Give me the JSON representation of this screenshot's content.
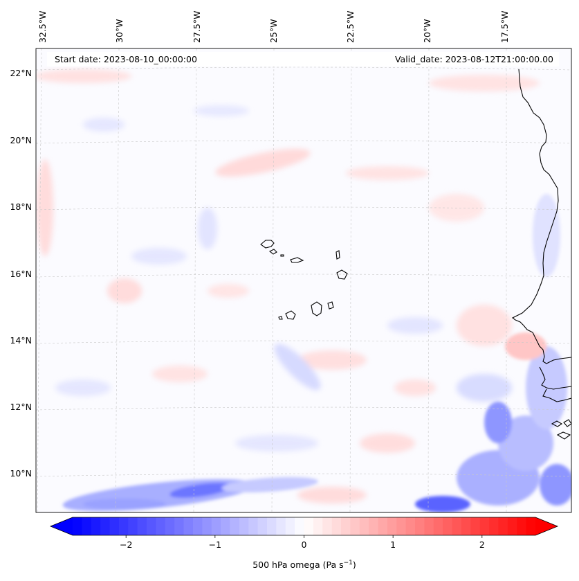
{
  "header": {
    "start_date_text": "Start date: 2023-08-10_00:00:00",
    "valid_date_text": "Valid_date: 2023-08-12T21:00:00.00"
  },
  "map": {
    "lon_ticks": [
      "32.5°W",
      "30°W",
      "27.5°W",
      "25°W",
      "22.5°W",
      "20°W",
      "17.5°W"
    ],
    "lat_ticks": [
      "22°N",
      "20°N",
      "18°N",
      "16°N",
      "14°N",
      "12°N",
      "10°N"
    ],
    "gridlines": "dashed-gray",
    "coastlines": "black"
  },
  "colorbar": {
    "label_prefix": "500 hPa omega (Pa s",
    "label_exponent": "−1",
    "label_suffix": ")",
    "ticks": [
      {
        "value": -2,
        "label": "−2"
      },
      {
        "value": -1,
        "label": "−1"
      },
      {
        "value": 0,
        "label": "0"
      },
      {
        "value": 1,
        "label": "1"
      },
      {
        "value": 2,
        "label": "2"
      }
    ],
    "vmin": -2.6,
    "vmax": 2.6,
    "colormap": "bwr",
    "color_low": "#0000ff",
    "color_mid": "#ffffff",
    "color_high": "#ff0000",
    "extend": "both"
  }
}
